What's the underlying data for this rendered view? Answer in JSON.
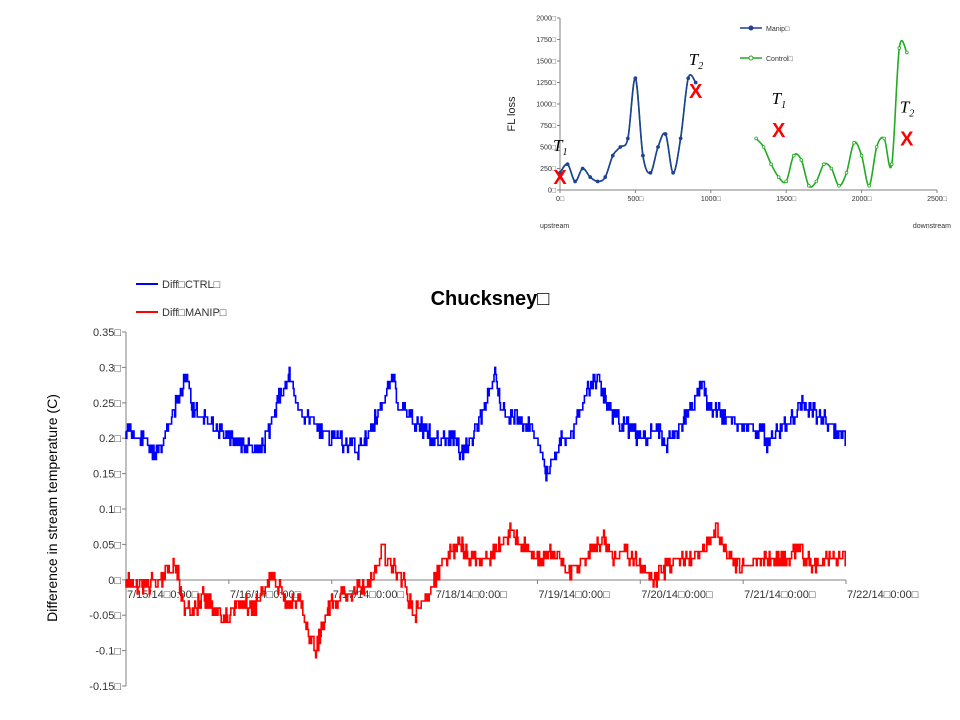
{
  "chart_data": [
    {
      "type": "line",
      "title": "",
      "xlabel": "",
      "ylabel": "FL loss",
      "xlim": [
        0,
        2500
      ],
      "ylim": [
        0,
        2000
      ],
      "x_ticks": [
        "0",
        "500",
        "1000",
        "1500",
        "2000",
        "2500"
      ],
      "y_ticks": [
        "0",
        "250",
        "500",
        "750",
        "1000",
        "1250",
        "1500",
        "1750",
        "2000"
      ],
      "tick_suffix": "□",
      "below_axis_labels": {
        "left": "upstream",
        "right": "downstream"
      },
      "legend_position": "top-right",
      "series": [
        {
          "name": "Manip",
          "color": "#1f3f99",
          "marker": "circle",
          "x": [
            0,
            50,
            100,
            150,
            200,
            250,
            300,
            350,
            400,
            450,
            500,
            550,
            600,
            650,
            700,
            750,
            800,
            850,
            900
          ],
          "y": [
            200,
            300,
            100,
            250,
            150,
            100,
            150,
            400,
            500,
            600,
            1300,
            400,
            200,
            500,
            650,
            200,
            600,
            1300,
            1250
          ]
        },
        {
          "name": "Control",
          "color": "#22aa22",
          "marker": "circle",
          "x": [
            0,
            50,
            100,
            150,
            200,
            250,
            300,
            350,
            400,
            450,
            500,
            550,
            600,
            650,
            700,
            750,
            800,
            850,
            900,
            1300,
            1350,
            1400,
            1450,
            1500,
            1550,
            1600,
            1650,
            1700,
            1750,
            1800,
            1850,
            1900,
            1950,
            2000,
            2050,
            2100,
            2150,
            2200,
            2250,
            2300
          ],
          "y": [
            200,
            300,
            100,
            250,
            150,
            100,
            150,
            400,
            500,
            600,
            1300,
            400,
            200,
            500,
            650,
            200,
            600,
            1300,
            1250,
            600,
            500,
            300,
            150,
            100,
            400,
            350,
            50,
            100,
            300,
            250,
            50,
            200,
            550,
            400,
            50,
            500,
            600,
            300,
            1650,
            1600
          ]
        }
      ],
      "annotations": [
        {
          "label": "T",
          "sub": "1",
          "marker": "X",
          "x": 0,
          "y": 150
        },
        {
          "label": "T",
          "sub": "2",
          "marker": "X",
          "x": 900,
          "y": 1150
        },
        {
          "label": "T",
          "sub": "1",
          "marker": "X",
          "x": 1450,
          "y": 700
        },
        {
          "label": "T",
          "sub": "2",
          "marker": "X",
          "x": 2300,
          "y": 600
        }
      ]
    },
    {
      "type": "line",
      "title": "Chucksney",
      "title_suffix": "□",
      "xlabel": "",
      "ylabel": "Difference in stream temperature (C)",
      "xlim": [
        0,
        7
      ],
      "ylim": [
        -0.15,
        0.35
      ],
      "grid": false,
      "legend_position": "top-left",
      "tick_suffix": "□",
      "x_ticks": [
        "7/15/14□0:00",
        "7/16/14□0:00",
        "7/17/14□0:00",
        "7/18/14□0:00",
        "7/19/14□0:00",
        "7/20/14□0:00",
        "7/21/14□0:00",
        "7/22/14□0:00"
      ],
      "y_ticks": [
        "-0.15",
        "-0.1",
        "-0.05",
        "0",
        "0.05",
        "0.1",
        "0.15",
        "0.2",
        "0.25",
        "0.3",
        "0.35"
      ],
      "series": [
        {
          "name": "Diff□CTRL",
          "color": "#0000ff",
          "x": [
            0,
            0.2,
            0.25,
            0.35,
            0.5,
            0.6,
            0.65,
            0.75,
            0.85,
            1.0,
            1.2,
            1.25,
            1.35,
            1.5,
            1.6,
            1.65,
            1.75,
            1.85,
            2.0,
            2.2,
            2.25,
            2.35,
            2.5,
            2.6,
            2.65,
            2.75,
            2.85,
            3.0,
            3.2,
            3.25,
            3.35,
            3.5,
            3.6,
            3.65,
            3.75,
            3.95,
            4.1,
            4.25,
            4.35,
            4.5,
            4.6,
            4.65,
            4.75,
            4.85,
            5.0,
            5.2,
            5.25,
            5.35,
            5.5,
            5.6,
            5.65,
            5.75,
            5.85,
            6.0,
            6.2,
            6.25,
            6.35,
            6.5,
            6.6,
            6.65,
            6.75,
            6.85,
            7.0
          ],
          "y": [
            0.21,
            0.2,
            0.18,
            0.19,
            0.25,
            0.29,
            0.24,
            0.23,
            0.22,
            0.2,
            0.19,
            0.18,
            0.19,
            0.26,
            0.29,
            0.25,
            0.23,
            0.22,
            0.2,
            0.19,
            0.18,
            0.2,
            0.25,
            0.29,
            0.25,
            0.23,
            0.22,
            0.2,
            0.2,
            0.18,
            0.19,
            0.25,
            0.29,
            0.24,
            0.23,
            0.22,
            0.15,
            0.2,
            0.21,
            0.27,
            0.29,
            0.26,
            0.23,
            0.22,
            0.2,
            0.21,
            0.19,
            0.21,
            0.24,
            0.28,
            0.25,
            0.24,
            0.23,
            0.22,
            0.21,
            0.19,
            0.21,
            0.23,
            0.25,
            0.24,
            0.23,
            0.22,
            0.2
          ]
        },
        {
          "name": "Diff□MANIP",
          "color": "#ff0000",
          "x": [
            0,
            0.15,
            0.35,
            0.5,
            0.55,
            0.65,
            0.75,
            0.85,
            1.0,
            1.1,
            1.25,
            1.4,
            1.5,
            1.6,
            1.7,
            1.75,
            1.85,
            1.95,
            2.0,
            2.2,
            2.4,
            2.5,
            2.6,
            2.7,
            2.8,
            2.95,
            3.1,
            3.25,
            3.35,
            3.5,
            3.6,
            3.75,
            3.85,
            4.0,
            4.15,
            4.3,
            4.45,
            4.55,
            4.65,
            4.75,
            4.85,
            5.0,
            5.15,
            5.35,
            5.5,
            5.65,
            5.75,
            5.85,
            6.0,
            6.2,
            6.4,
            6.55,
            6.7,
            6.85,
            7.0
          ],
          "y": [
            0.0,
            -0.01,
            0.0,
            0.02,
            -0.03,
            -0.05,
            -0.02,
            -0.04,
            -0.05,
            -0.03,
            -0.04,
            0.0,
            -0.01,
            -0.04,
            -0.02,
            -0.07,
            -0.1,
            -0.05,
            -0.03,
            -0.02,
            0.0,
            0.04,
            0.02,
            0.0,
            -0.05,
            -0.02,
            0.03,
            0.05,
            0.03,
            0.03,
            0.04,
            0.07,
            0.05,
            0.03,
            0.04,
            0.01,
            0.03,
            0.04,
            0.06,
            0.03,
            0.04,
            0.02,
            0.0,
            0.03,
            0.03,
            0.05,
            0.07,
            0.03,
            0.02,
            0.03,
            0.03,
            0.04,
            0.02,
            0.03,
            0.03
          ]
        }
      ]
    }
  ]
}
